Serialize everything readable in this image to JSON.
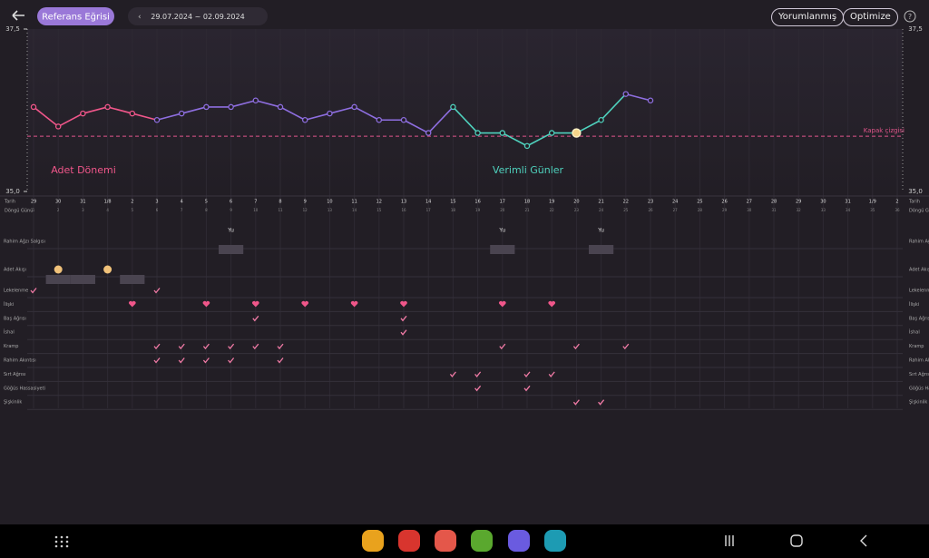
{
  "header": {
    "title": "Referans Eğrisi",
    "date_range": "29.07.2024 ~ 02.09.2024",
    "buttons": [
      "Yorumlanmış",
      "Optimize"
    ],
    "help": "?"
  },
  "chart_data": {
    "type": "line",
    "x": [
      "29",
      "30",
      "31",
      "1/8",
      "2",
      "3",
      "4",
      "5",
      "6",
      "7",
      "8",
      "9",
      "10",
      "11",
      "12",
      "13",
      "14",
      "15",
      "16",
      "17",
      "18",
      "19",
      "20",
      "21",
      "22",
      "23",
      "24",
      "25",
      "26",
      "27",
      "28",
      "29",
      "30",
      "31",
      "1/9",
      "2"
    ],
    "cycle_days": [
      1,
      2,
      3,
      4,
      5,
      6,
      7,
      8,
      9,
      10,
      11,
      12,
      13,
      14,
      15,
      16,
      17,
      18,
      19,
      20,
      21,
      22,
      23,
      24,
      25,
      26,
      27,
      28,
      29,
      30,
      31,
      32,
      33,
      34,
      35,
      36
    ],
    "values": [
      36.3,
      36.0,
      36.2,
      36.3,
      36.2,
      36.1,
      36.2,
      36.3,
      36.3,
      36.4,
      36.3,
      36.1,
      36.2,
      36.3,
      36.1,
      36.1,
      35.9,
      36.3,
      35.9,
      35.9,
      35.7,
      35.9,
      35.9,
      36.1,
      36.5,
      36.4,
      null,
      null,
      null,
      null,
      null,
      null,
      null,
      null,
      null,
      null
    ],
    "point_colors": [
      "#f0568a",
      "#f0568a",
      "#f0568a",
      "#f0568a",
      "#f0568a",
      "#8e6ee0",
      "#8e6ee0",
      "#8e6ee0",
      "#8e6ee0",
      "#8e6ee0",
      "#8e6ee0",
      "#8e6ee0",
      "#8e6ee0",
      "#8e6ee0",
      "#8e6ee0",
      "#8e6ee0",
      "#8e6ee0",
      "#4fd1bd",
      "#4fd1bd",
      "#4fd1bd",
      "#4fd1bd",
      "#4fd1bd",
      "#4fd1bd",
      "#4fd1bd",
      "#8e6ee0",
      "#8e6ee0"
    ],
    "highlight": 22,
    "ylim": [
      35.0,
      37.5
    ],
    "yticks": [
      {
        "value": 35.0,
        "label": "35,0"
      },
      {
        "value": 37.5,
        "label": "37,5"
      }
    ],
    "coverline": {
      "value": 35.85,
      "label": "Kapak çizgisi"
    },
    "annotations": [
      "Adet Dönemi",
      "Verimli Günler"
    ],
    "row_titles": [
      "Tarih",
      "Döngü Günü"
    ]
  },
  "tracker": {
    "mucus": {
      "label": "Rahim Ağzı Salgısı",
      "text": "Yu",
      "days": [
        8,
        19,
        23
      ]
    },
    "flow": {
      "label": "Adet Akışı",
      "days": [
        1,
        2,
        4
      ],
      "dots": [
        1,
        3
      ]
    },
    "rows": [
      {
        "label": "Lekelenme",
        "mark": "check",
        "days": [
          0,
          5
        ]
      },
      {
        "label": "İlişki",
        "mark": "heart",
        "days": [
          4,
          7,
          9,
          11,
          13,
          15,
          19,
          21
        ]
      },
      {
        "label": "Baş Ağrısı",
        "mark": "check",
        "days": [
          9,
          15
        ]
      },
      {
        "label": "İshal",
        "mark": "check",
        "days": [
          15
        ]
      },
      {
        "label": "Kramp",
        "mark": "check",
        "days": [
          5,
          6,
          7,
          8,
          9,
          10,
          19,
          22,
          24
        ]
      },
      {
        "label": "Rahim Akıntısı",
        "mark": "check",
        "days": [
          5,
          6,
          7,
          8,
          10
        ]
      },
      {
        "label": "Sırt Ağrısı",
        "mark": "check",
        "days": [
          17,
          18,
          20,
          21
        ]
      },
      {
        "label": "Göğüs Hassasiyeti",
        "mark": "check",
        "days": [
          18,
          20
        ]
      },
      {
        "label": "Şişkinlik",
        "mark": "check",
        "days": [
          22,
          23
        ]
      }
    ]
  }
}
